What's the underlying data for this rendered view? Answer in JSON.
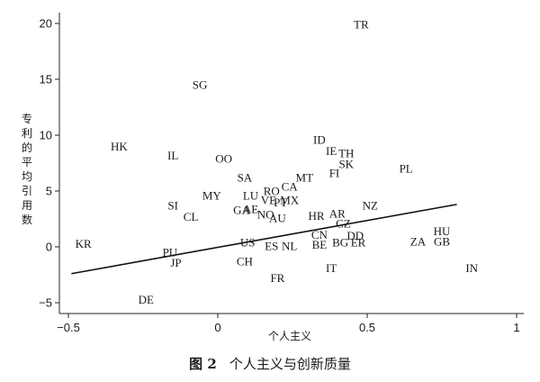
{
  "chart_data": {
    "type": "scatter",
    "xlabel": "个人主义",
    "ylabel": "专利的平均引用数",
    "xlim": [
      -0.5,
      1
    ],
    "ylim": [
      -5,
      21
    ],
    "xticks": [
      -0.5,
      0,
      0.5,
      1
    ],
    "yticks": [
      -5,
      0,
      5,
      10,
      15,
      20
    ],
    "grid": false,
    "fit_line": {
      "x": [
        -0.49,
        0.8
      ],
      "y": [
        -2.4,
        3.8
      ]
    },
    "points": [
      {
        "label": "TR",
        "x": 0.48,
        "y": 19.9
      },
      {
        "label": "SG",
        "x": -0.06,
        "y": 14.5
      },
      {
        "label": "HK",
        "x": -0.33,
        "y": 9.0
      },
      {
        "label": "IL",
        "x": -0.15,
        "y": 8.2
      },
      {
        "label": "OO",
        "x": 0.02,
        "y": 7.9
      },
      {
        "label": "ID",
        "x": 0.34,
        "y": 9.6
      },
      {
        "label": "IE",
        "x": 0.38,
        "y": 8.6
      },
      {
        "label": "TH",
        "x": 0.43,
        "y": 8.4
      },
      {
        "label": "SK",
        "x": 0.43,
        "y": 7.4
      },
      {
        "label": "PL",
        "x": 0.63,
        "y": 7.0
      },
      {
        "label": "FI",
        "x": 0.39,
        "y": 6.6
      },
      {
        "label": "MT",
        "x": 0.29,
        "y": 6.2
      },
      {
        "label": "SA",
        "x": 0.09,
        "y": 6.2
      },
      {
        "label": "CA",
        "x": 0.24,
        "y": 5.4
      },
      {
        "label": "RO",
        "x": 0.18,
        "y": 5.0
      },
      {
        "label": "MY",
        "x": -0.02,
        "y": 4.6
      },
      {
        "label": "LU",
        "x": 0.11,
        "y": 4.6
      },
      {
        "label": "VE",
        "x": 0.17,
        "y": 4.2
      },
      {
        "label": "PT",
        "x": 0.21,
        "y": 4.0
      },
      {
        "label": "MX",
        "x": 0.24,
        "y": 4.2
      },
      {
        "label": "SI",
        "x": -0.15,
        "y": 3.7
      },
      {
        "label": "AE",
        "x": 0.11,
        "y": 3.4
      },
      {
        "label": "GA",
        "x": 0.08,
        "y": 3.3
      },
      {
        "label": "NZ",
        "x": 0.51,
        "y": 3.7
      },
      {
        "label": "CL",
        "x": -0.09,
        "y": 2.7
      },
      {
        "label": "NO",
        "x": 0.16,
        "y": 2.9
      },
      {
        "label": "AU",
        "x": 0.2,
        "y": 2.6
      },
      {
        "label": "HR",
        "x": 0.33,
        "y": 2.8
      },
      {
        "label": "AR",
        "x": 0.4,
        "y": 3.0
      },
      {
        "label": "CZ",
        "x": 0.42,
        "y": 2.1
      },
      {
        "label": "CN",
        "x": 0.34,
        "y": 1.1
      },
      {
        "label": "DD",
        "x": 0.46,
        "y": 1.0
      },
      {
        "label": "HU",
        "x": 0.75,
        "y": 1.4
      },
      {
        "label": "KR",
        "x": -0.45,
        "y": 0.3
      },
      {
        "label": "US",
        "x": 0.1,
        "y": 0.4
      },
      {
        "label": "ES",
        "x": 0.18,
        "y": 0.1
      },
      {
        "label": "NL",
        "x": 0.24,
        "y": 0.1
      },
      {
        "label": "BE",
        "x": 0.34,
        "y": 0.2
      },
      {
        "label": "BG",
        "x": 0.41,
        "y": 0.4
      },
      {
        "label": "ER",
        "x": 0.47,
        "y": 0.4
      },
      {
        "label": "ZA",
        "x": 0.67,
        "y": 0.5
      },
      {
        "label": "GB",
        "x": 0.75,
        "y": 0.5
      },
      {
        "label": "PU",
        "x": -0.16,
        "y": -0.5
      },
      {
        "label": "JP",
        "x": -0.14,
        "y": -1.4
      },
      {
        "label": "CH",
        "x": 0.09,
        "y": -1.3
      },
      {
        "label": "IT",
        "x": 0.38,
        "y": -1.9
      },
      {
        "label": "IN",
        "x": 0.85,
        "y": -1.9
      },
      {
        "label": "FR",
        "x": 0.2,
        "y": -2.8
      },
      {
        "label": "DE",
        "x": -0.24,
        "y": -4.7
      }
    ]
  },
  "caption": {
    "number": "图 2",
    "text": "个人主义与创新质量"
  }
}
